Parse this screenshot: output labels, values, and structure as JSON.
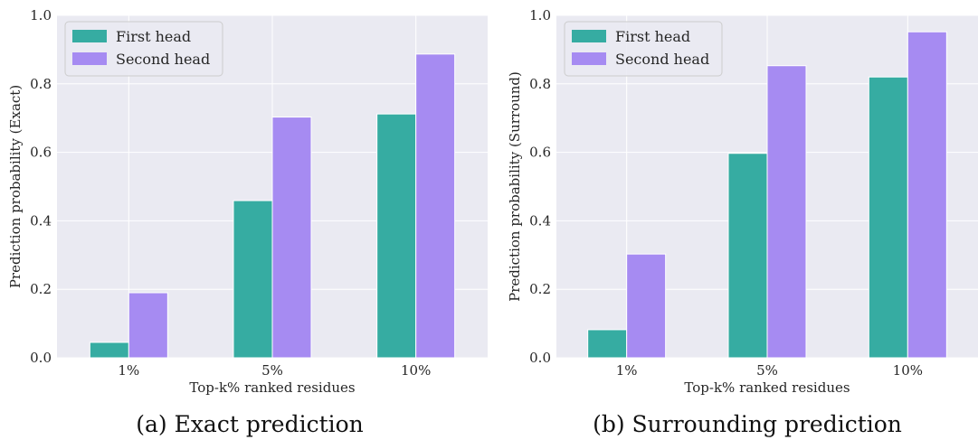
{
  "chart_data": [
    {
      "type": "bar",
      "caption": "(a) Exact prediction",
      "categories": [
        "1%",
        "5%",
        "10%"
      ],
      "series": [
        {
          "name": "First head",
          "values": [
            0.045,
            0.459,
            0.712
          ],
          "color": "#36ACA2"
        },
        {
          "name": "Second head",
          "values": [
            0.19,
            0.703,
            0.887
          ],
          "color": "#A68BF2"
        }
      ],
      "xlabel": "Top-k% ranked residues",
      "ylabel": "Prediction probability (Exact)",
      "ylim": [
        0,
        1.0
      ],
      "yticks": [
        "0.0",
        "0.2",
        "0.4",
        "0.6",
        "0.8",
        "1.0"
      ],
      "grid": true,
      "legend_position": "top-left"
    },
    {
      "type": "bar",
      "caption": "(b) Surrounding prediction",
      "categories": [
        "1%",
        "5%",
        "10%"
      ],
      "series": [
        {
          "name": "First head",
          "values": [
            0.082,
            0.597,
            0.82
          ],
          "color": "#36ACA2"
        },
        {
          "name": "Second head",
          "values": [
            0.303,
            0.853,
            0.952
          ],
          "color": "#A68BF2"
        }
      ],
      "xlabel": "Top-k% ranked residues",
      "ylabel": "Prediction probability (Surround)",
      "ylim": [
        0,
        1.0
      ],
      "yticks": [
        "0.0",
        "0.2",
        "0.4",
        "0.6",
        "0.8",
        "1.0"
      ],
      "grid": true,
      "legend_position": "top-left"
    }
  ],
  "theme": {
    "plot_background": "#EAEAF2",
    "grid_color": "#FFFFFF"
  }
}
